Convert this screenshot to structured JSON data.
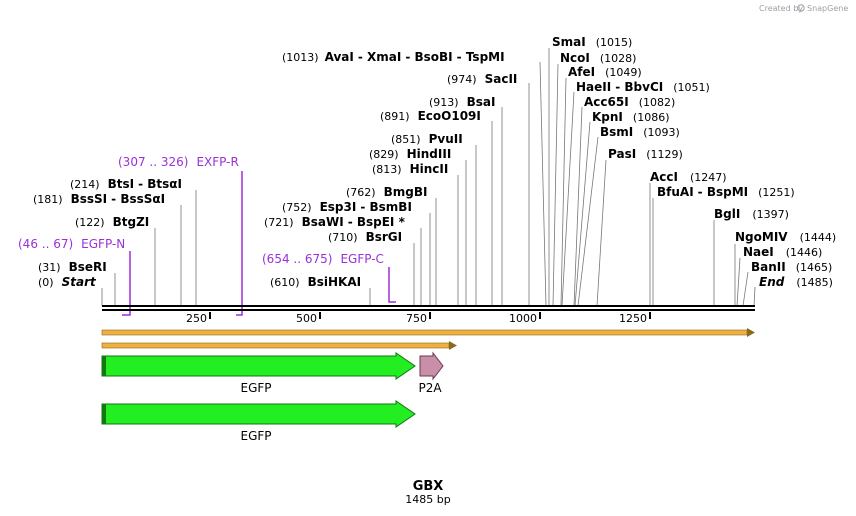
{
  "credit": {
    "created_by": "Created by",
    "brand": "SnapGene"
  },
  "map": {
    "name": "GBX",
    "length_label": "1485 bp",
    "length": 1485
  },
  "ruler": {
    "ticks": [
      "250",
      "500",
      "750",
      "1000",
      "1250"
    ]
  },
  "sites": [
    {
      "label_parts": [
        {
          "t": "AvaI"
        },
        {
          "t": "XmaI"
        },
        {
          "t": "BsoBI"
        },
        {
          "t": "TspMI"
        }
      ],
      "pos": "(1013)"
    },
    {
      "label_parts": [
        {
          "t": "SmaI"
        }
      ],
      "pos": "(1015)"
    },
    {
      "label_parts": [
        {
          "t": "NcoI"
        }
      ],
      "pos": "(1028)"
    },
    {
      "label_parts": [
        {
          "t": "SacII"
        }
      ],
      "pos": "(974)"
    },
    {
      "label_parts": [
        {
          "t": "AfeI"
        }
      ],
      "pos": "(1049)"
    },
    {
      "label_parts": [
        {
          "t": "HaeII"
        },
        {
          "t": "BbvCI"
        }
      ],
      "pos": "(1051)"
    },
    {
      "label_parts": [
        {
          "t": "BsaI"
        }
      ],
      "pos": "(913)"
    },
    {
      "label_parts": [
        {
          "t": "Acc65I"
        }
      ],
      "pos": "(1082)"
    },
    {
      "label_parts": [
        {
          "t": "EcoO109I"
        }
      ],
      "pos": "(891)"
    },
    {
      "label_parts": [
        {
          "t": "KpnI"
        }
      ],
      "pos": "(1086)"
    },
    {
      "label_parts": [
        {
          "t": "BsmI"
        }
      ],
      "pos": "(1093)"
    },
    {
      "label_parts": [
        {
          "t": "PvuII"
        }
      ],
      "pos": "(851)"
    },
    {
      "label_parts": [
        {
          "t": "HindIII"
        }
      ],
      "pos": "(829)"
    },
    {
      "label_parts": [
        {
          "t": "PasI"
        }
      ],
      "pos": "(1129)"
    },
    {
      "label_parts": [
        {
          "t": "HincII"
        }
      ],
      "pos": "(813)"
    },
    {
      "label_parts": [
        {
          "t": "AccI"
        }
      ],
      "pos": "(1247)"
    },
    {
      "label_parts": [
        {
          "t": "BtsI"
        },
        {
          "t": "BtsαI"
        }
      ],
      "pos": "(214)"
    },
    {
      "label_parts": [
        {
          "t": "BmgBI"
        }
      ],
      "pos": "(762)"
    },
    {
      "label_parts": [
        {
          "t": "BfuAI"
        },
        {
          "t": "BspMI"
        }
      ],
      "pos": "(1251)"
    },
    {
      "label_parts": [
        {
          "t": "BssSI"
        },
        {
          "t": "BssSαI"
        }
      ],
      "pos": "(181)"
    },
    {
      "label_parts": [
        {
          "t": "Esp3I"
        },
        {
          "t": "BsmBI"
        }
      ],
      "pos": "(752)"
    },
    {
      "label_parts": [
        {
          "t": "BglI"
        }
      ],
      "pos": "(1397)"
    },
    {
      "label_parts": [
        {
          "t": "BtgZI"
        }
      ],
      "pos": "(122)"
    },
    {
      "label_parts": [
        {
          "t": "BsaWI"
        },
        {
          "t": "BspEI *"
        }
      ],
      "pos": "(721)"
    },
    {
      "label_parts": [
        {
          "t": "BsrGI"
        }
      ],
      "pos": "(710)"
    },
    {
      "label_parts": [
        {
          "t": "NgoMIV"
        }
      ],
      "pos": "(1444)"
    },
    {
      "label_parts": [
        {
          "t": "NaeI"
        }
      ],
      "pos": "(1446)"
    },
    {
      "label_parts": [
        {
          "t": "BseRI"
        }
      ],
      "pos": "(31)"
    },
    {
      "label_parts": [
        {
          "t": "BanII"
        }
      ],
      "pos": "(1465)"
    },
    {
      "label_parts": [
        {
          "t": "BsiHKAI"
        }
      ],
      "pos": "(610)"
    },
    {
      "label_parts": [
        {
          "t": "Start"
        }
      ],
      "pos": "(0)"
    },
    {
      "label_parts": [
        {
          "t": "End"
        }
      ],
      "pos": "(1485)"
    }
  ],
  "primers": [
    {
      "range": "(307 .. 326)",
      "name": "EXFP-R"
    },
    {
      "range": "(46 .. 67)",
      "name": "EGFP-N"
    },
    {
      "range": "(654 .. 675)",
      "name": "EGFP-C"
    }
  ],
  "features": [
    {
      "name": "EGFP",
      "start": 1,
      "end": 720,
      "color": "#22ee22"
    },
    {
      "name": "P2A",
      "start": 721,
      "end": 777,
      "color": "#c98fa8"
    },
    {
      "name": "EGFP",
      "start": 1,
      "end": 720,
      "color": "#22ee22"
    }
  ],
  "colors": {
    "primer": "#9b30d9",
    "orf": "#f0b040",
    "backbone": "#000000"
  }
}
